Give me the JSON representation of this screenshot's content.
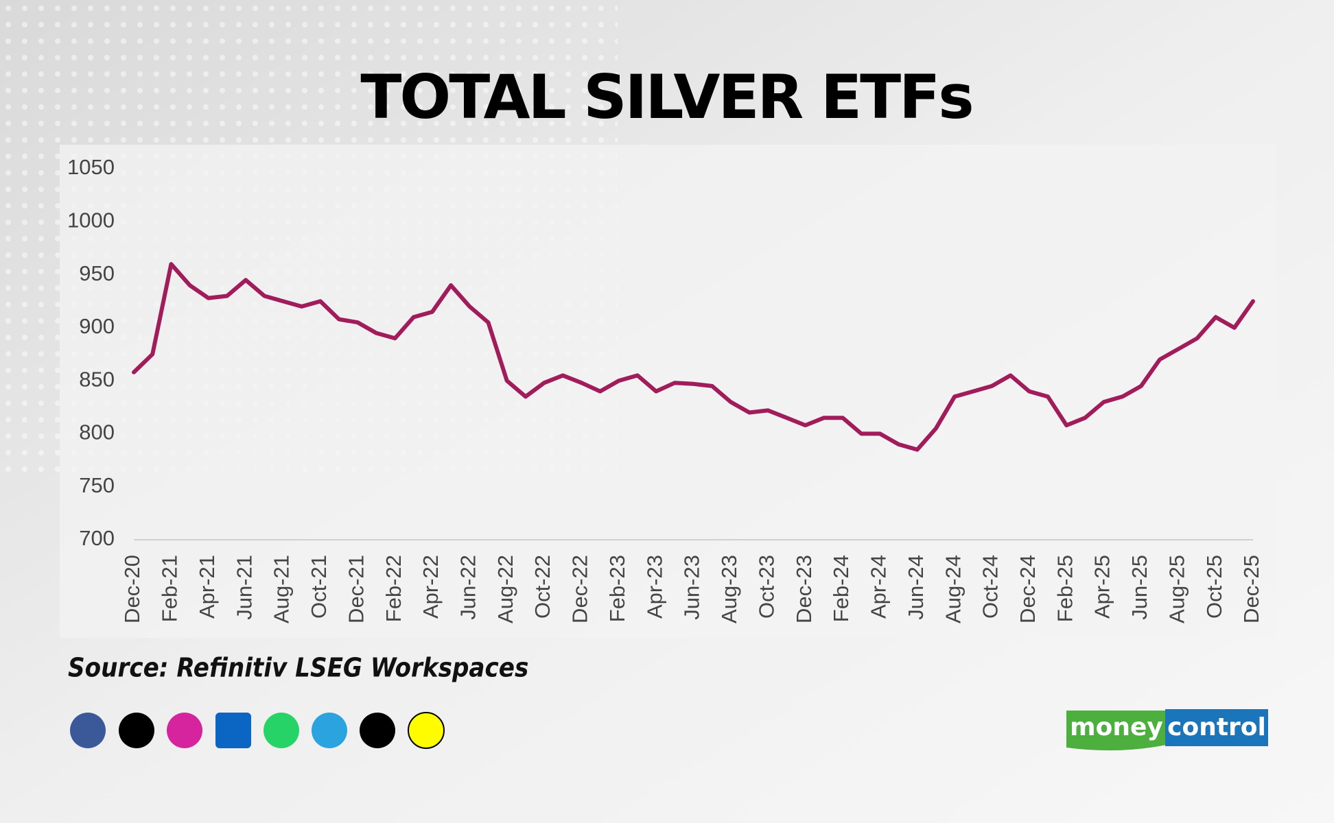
{
  "chart_data": {
    "type": "line",
    "title": "TOTAL SILVER ETFs",
    "categories": [
      "Dec-20",
      null,
      "Feb-21",
      null,
      "Apr-21",
      null,
      "Jun-21",
      null,
      "Aug-21",
      null,
      "Oct-21",
      null,
      "Dec-21",
      null,
      "Feb-22",
      null,
      "Apr-22",
      null,
      "Jun-22",
      null,
      "Aug-22",
      null,
      "Oct-22",
      null,
      "Dec-22",
      null,
      "Feb-23",
      null,
      "Apr-23",
      null,
      "Jun-23",
      null,
      "Aug-23",
      null,
      "Oct-23",
      null,
      "Dec-23",
      null,
      "Feb-24",
      null,
      "Apr-24",
      null,
      "Jun-24",
      null,
      "Aug-24",
      null,
      "Oct-24",
      null,
      "Dec-24",
      null,
      "Feb-25",
      null,
      "Apr-25",
      null,
      "Jun-25",
      null,
      "Aug-25",
      null,
      "Oct-25",
      null,
      "Dec-25"
    ],
    "series": [
      {
        "name": "Total Silver ETFs",
        "color": "#a01c5a",
        "values": [
          858,
          875,
          960,
          940,
          928,
          930,
          945,
          930,
          925,
          920,
          925,
          908,
          905,
          895,
          890,
          910,
          915,
          940,
          920,
          905,
          850,
          835,
          848,
          855,
          848,
          840,
          850,
          855,
          840,
          848,
          847,
          845,
          830,
          820,
          822,
          815,
          808,
          815,
          815,
          800,
          800,
          790,
          785,
          805,
          835,
          840,
          845,
          855,
          840,
          835,
          808,
          815,
          830,
          835,
          845,
          870,
          880,
          890,
          910,
          900,
          925
        ]
      }
    ],
    "ylim": [
      700,
      1050
    ],
    "yticks": [
      700,
      750,
      800,
      850,
      900,
      950,
      1000,
      1050
    ],
    "grid": false,
    "source": "Source: Refinitiv LSEG Workspaces"
  },
  "logo": {
    "left": "money",
    "right": "control"
  }
}
